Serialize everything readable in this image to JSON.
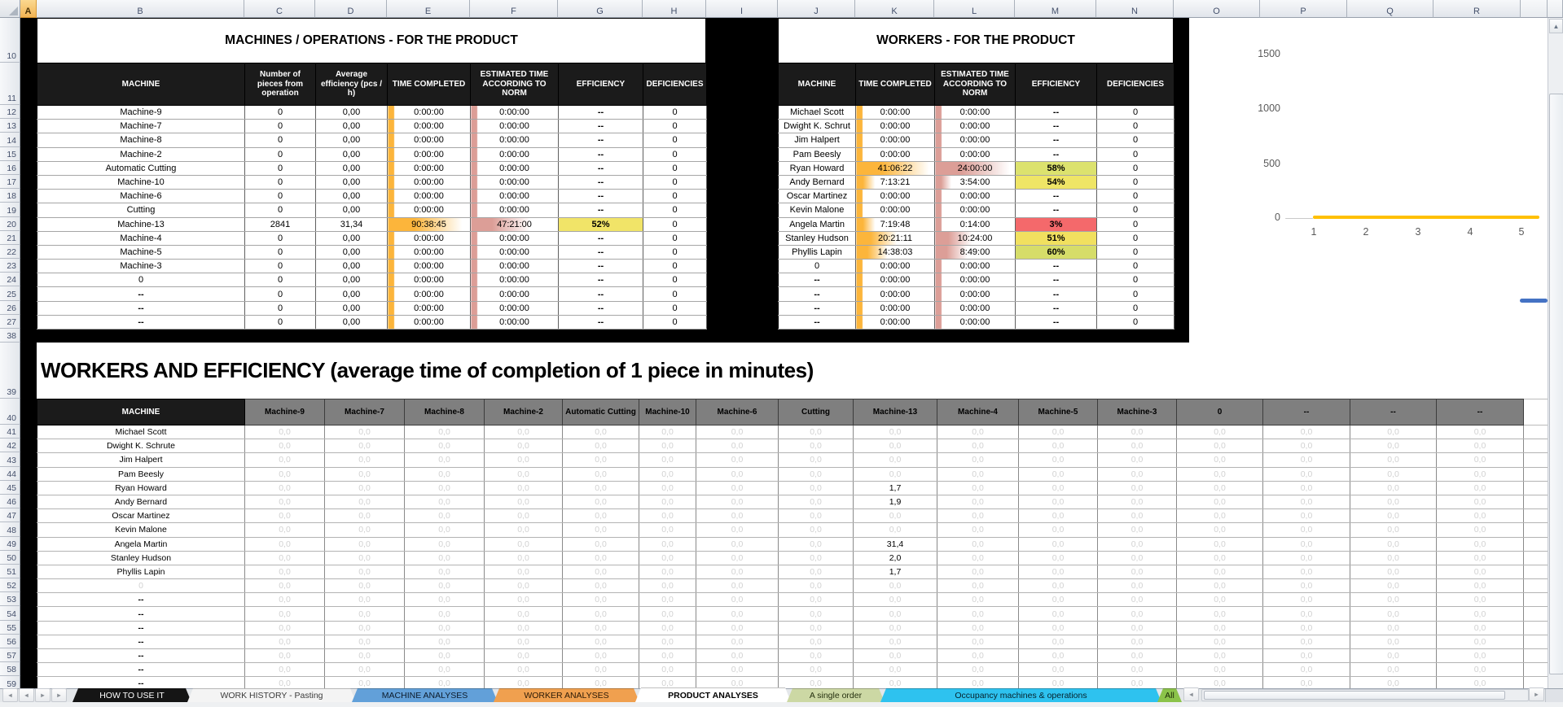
{
  "grid": {
    "col_letters": [
      "A",
      "B",
      "C",
      "D",
      "E",
      "F",
      "G",
      "H",
      "I",
      "J",
      "K",
      "L",
      "M",
      "N",
      "O",
      "P",
      "Q",
      "R"
    ],
    "selected_col": "A",
    "row_numbers": [
      "10",
      "11",
      "12",
      "13",
      "14",
      "15",
      "16",
      "17",
      "18",
      "19",
      "20",
      "21",
      "22",
      "23",
      "24",
      "25",
      "26",
      "27",
      "38",
      "39",
      "40",
      "41",
      "42",
      "43",
      "44",
      "45",
      "46",
      "47",
      "48",
      "49",
      "50",
      "51",
      "52",
      "53",
      "54",
      "55",
      "56",
      "57",
      "58",
      "59"
    ]
  },
  "machines_table": {
    "title": "MACHINES / OPERATIONS - FOR THE PRODUCT",
    "headers": [
      "MACHINE",
      "Number of pieces from operation",
      "Average efficiency (pcs / h)",
      "TIME COMPLETED",
      "ESTIMATED TIME ACCORDING TO NORM",
      "EFFICIENCY",
      "DEFICIENCIES"
    ],
    "empty_row_defaults": {
      "pieces": "0",
      "avg": "0,00",
      "time": "0:00:00",
      "est": "0:00:00",
      "eff": "--",
      "def": "0"
    },
    "bar_colors": {
      "time": "#fcb53b",
      "est": "#dc9e97"
    },
    "rows": [
      {
        "machine": "Machine-9"
      },
      {
        "machine": "Machine-7"
      },
      {
        "machine": "Machine-8"
      },
      {
        "machine": "Machine-2"
      },
      {
        "machine": "Automatic Cutting"
      },
      {
        "machine": "Machine-10"
      },
      {
        "machine": "Machine-6"
      },
      {
        "machine": "Cutting"
      },
      {
        "machine": "Machine-13",
        "pieces": "2841",
        "avg": "31,34",
        "time": "90:38:45",
        "est": "47:21:00",
        "eff": "52%",
        "def": "0",
        "eff_color": "#f1e468",
        "time_bar": 0.9,
        "est_bar": 0.68,
        "has_data": true
      },
      {
        "machine": "Machine-4"
      },
      {
        "machine": "Machine-5"
      },
      {
        "machine": "Machine-3"
      },
      {
        "machine": "0"
      },
      {
        "machine": "--"
      },
      {
        "machine": "--"
      },
      {
        "machine": "--"
      }
    ]
  },
  "workers_table": {
    "title": "WORKERS - FOR THE PRODUCT",
    "headers": [
      "MACHINE",
      "TIME COMPLETED",
      "ESTIMATED TIME ACCORDING TO NORM",
      "EFFICIENCY",
      "DEFICIENCIES"
    ],
    "empty_row_defaults": {
      "time": "0:00:00",
      "est": "0:00:00",
      "eff": "--",
      "def": "0"
    },
    "bar_colors": {
      "time": "#fcb53b",
      "est": "#dc9e97"
    },
    "rows": [
      {
        "name": "Michael Scott"
      },
      {
        "name": "Dwight K. Schrut"
      },
      {
        "name": "Jim Halpert"
      },
      {
        "name": "Pam Beesly"
      },
      {
        "name": "Ryan Howard",
        "time": "41:06:22",
        "est": "24:00:00",
        "eff": "58%",
        "eff_color": "#dce26e",
        "time_bar": 0.93,
        "est_bar": 0.93,
        "has_data": true
      },
      {
        "name": "Andy Bernard",
        "time": "7:13:21",
        "est": "3:54:00",
        "eff": "54%",
        "eff_color": "#efe566",
        "time_bar": 0.24,
        "est_bar": 0.2,
        "has_data": true
      },
      {
        "name": "Oscar Martinez"
      },
      {
        "name": "Kevin Malone"
      },
      {
        "name": "Angela Martin",
        "time": "7:19:48",
        "est": "0:14:00",
        "eff": "3%",
        "eff_color": "#f4696b",
        "time_bar": 0.24,
        "est_bar": 0.05,
        "has_data": true
      },
      {
        "name": "Stanley Hudson",
        "time": "20:21:11",
        "est": "10:24:00",
        "eff": "51%",
        "eff_color": "#f1e05f",
        "time_bar": 0.52,
        "est_bar": 0.46,
        "has_data": true
      },
      {
        "name": "Phyllis Lapin",
        "time": "14:38:03",
        "est": "8:49:00",
        "eff": "60%",
        "eff_color": "#d6dd69",
        "time_bar": 0.4,
        "est_bar": 0.4,
        "has_data": true
      },
      {
        "name": "0",
        "muted_name": true
      },
      {
        "name": "--"
      },
      {
        "name": "--"
      },
      {
        "name": "--"
      },
      {
        "name": "--"
      }
    ]
  },
  "chart_data": [
    {
      "type": "line",
      "title": "",
      "xlabel": "",
      "ylabel": "",
      "x_ticks": [
        "1",
        "2",
        "3",
        "4",
        "5"
      ],
      "y_ticks": [
        "0",
        "500",
        "1000",
        "1500"
      ],
      "ylim": [
        0,
        1750
      ],
      "legend": "none",
      "gridlines": "off",
      "series": [
        {
          "name": "orange-flat-series",
          "color": "#ffc000",
          "x": [
            1,
            2,
            3,
            4,
            5
          ],
          "y": [
            0,
            0,
            0,
            0,
            0
          ]
        }
      ]
    },
    {
      "type": "line",
      "visible": "partial top-right edge only",
      "series": [
        {
          "name": "blue-partial-series",
          "color": "#4472c4",
          "y": [
            0
          ]
        }
      ]
    }
  ],
  "section_title": "WORKERS AND EFFICIENCY (average time of completion of 1 piece in minutes)",
  "bottom_table": {
    "first_header": "MACHINE",
    "col_headers": [
      "Machine-9",
      "Machine-7",
      "Machine-8",
      "Machine-2",
      "Automatic Cutting",
      "Machine-10",
      "Machine-6",
      "Cutting",
      "Machine-13",
      "Machine-4",
      "Machine-5",
      "Machine-3",
      "0",
      "--",
      "--",
      "--"
    ],
    "default_value": "0,0",
    "rows": [
      {
        "name": "Michael Scott"
      },
      {
        "name": "Dwight K. Schrute"
      },
      {
        "name": "Jim Halpert"
      },
      {
        "name": "Pam Beesly"
      },
      {
        "name": "Ryan Howard",
        "overrides": {
          "8": "1,7"
        }
      },
      {
        "name": "Andy Bernard",
        "overrides": {
          "8": "1,9"
        }
      },
      {
        "name": "Oscar Martinez"
      },
      {
        "name": "Kevin Malone"
      },
      {
        "name": "Angela Martin",
        "overrides": {
          "8": "31,4"
        }
      },
      {
        "name": "Stanley Hudson",
        "overrides": {
          "8": "2,0"
        }
      },
      {
        "name": "Phyllis Lapin",
        "overrides": {
          "8": "1,7"
        }
      },
      {
        "name": "0",
        "muted_name": true
      },
      {
        "name": "--"
      },
      {
        "name": "--"
      },
      {
        "name": "--"
      },
      {
        "name": "--"
      },
      {
        "name": "--"
      },
      {
        "name": "--"
      },
      {
        "name": "--"
      }
    ]
  },
  "sheet_tabs": [
    {
      "label": "HOW TO USE IT",
      "bg": "#151515",
      "fg": "#ffffff"
    },
    {
      "label": "WORK HISTORY - Pasting",
      "bg": "#f4f4f4",
      "fg": "#3c3c3c"
    },
    {
      "label": "MACHINE ANALYSES",
      "bg": "#62a0d9",
      "fg": "#0c1b2b"
    },
    {
      "label": "WORKER ANALYSES",
      "bg": "#f0a04f",
      "fg": "#2b1a06"
    },
    {
      "label": "PRODUCT ANALYSES",
      "bg": "#ffffff",
      "fg": "#000000",
      "active": true
    },
    {
      "label": "A single order",
      "bg": "#ccd8a4",
      "fg": "#25300f"
    },
    {
      "label": "Occupancy machines & operations",
      "bg": "#2ec2ef",
      "fg": "#06222c"
    },
    {
      "label": "All",
      "bg": "#8bc34a",
      "fg": "#1c2b08",
      "clipped": true
    }
  ],
  "icons": {
    "select_all": "corner-triangle",
    "nav_first": "◄",
    "nav_prev": "◄",
    "nav_next": "►",
    "nav_last": "►",
    "tab_scroll_left": "◄",
    "hscroll_right": "►",
    "vscroll_up": "▲"
  }
}
